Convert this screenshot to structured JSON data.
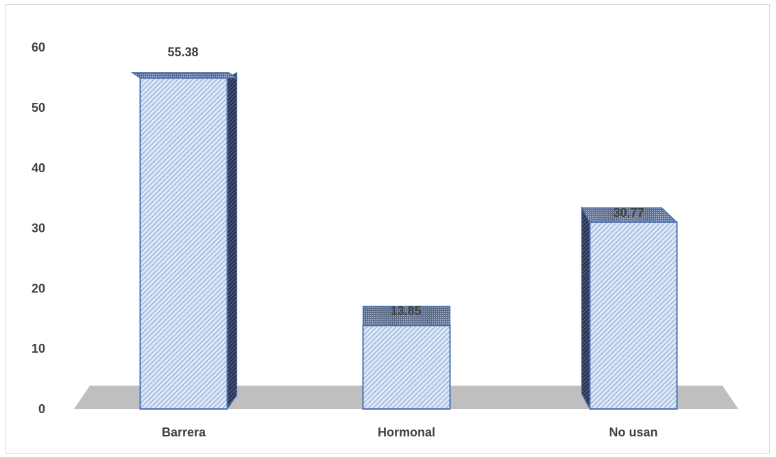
{
  "chart_data": {
    "type": "bar",
    "style": "3d-column",
    "categories": [
      "Barrera",
      "Hormonal",
      "No usan"
    ],
    "values": [
      55.38,
      13.85,
      30.77
    ],
    "data_labels": [
      "55.38",
      "13.85",
      "30.77"
    ],
    "title": "",
    "xlabel": "",
    "ylabel": "",
    "ylim": [
      0,
      60
    ],
    "yticks": [
      0,
      10,
      20,
      30,
      40,
      50,
      60
    ],
    "grid": false,
    "legend": "none",
    "colors": {
      "bar_fill": "#dbe6f6",
      "bar_hatch": "#6d8fc9",
      "bar_edge": "#4a72b5",
      "bar_side": "#1f2a44",
      "floor": "#bfbfbf",
      "text": "#404040"
    }
  }
}
